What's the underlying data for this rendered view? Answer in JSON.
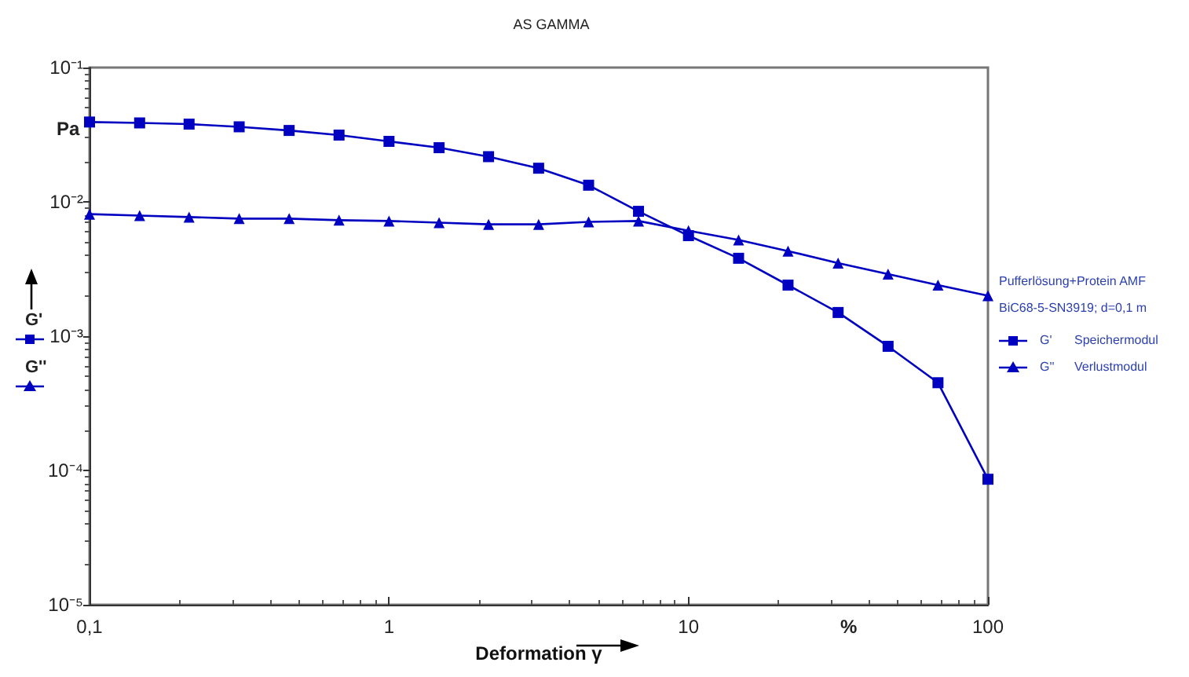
{
  "chart_data": {
    "type": "line",
    "title": "AS GAMMA",
    "xlabel": "Deformation γ",
    "ylabel": "Pa",
    "annotations": [
      "%",
      "Pufferlösung+Protein AMF",
      "BiC68-5-SN3919; d=0,1 m",
      "Speichermodul",
      "Verlustmodul"
    ],
    "x": [
      0.1,
      0.147,
      0.215,
      0.316,
      0.464,
      0.681,
      1,
      1.47,
      2.15,
      3.16,
      4.64,
      6.81,
      10,
      14.7,
      21.5,
      31.6,
      46.4,
      68.1,
      100
    ],
    "series": [
      {
        "name": "G'",
        "color": "#0000c0",
        "marker": "square",
        "values": [
          0.0393,
          0.0387,
          0.0379,
          0.0362,
          0.034,
          0.0314,
          0.0282,
          0.0253,
          0.0217,
          0.0178,
          0.0133,
          0.0085,
          0.0056,
          0.0038,
          0.0024,
          0.0015,
          0.00084,
          0.00045,
          8.6e-05
        ]
      },
      {
        "name": "G''",
        "color": "#0000c0",
        "marker": "triangle",
        "values": [
          0.0081,
          0.0079,
          0.0077,
          0.0075,
          0.0075,
          0.0073,
          0.0072,
          0.007,
          0.0068,
          0.0068,
          0.0071,
          0.0072,
          0.0061,
          0.0052,
          0.0043,
          0.0035,
          0.0029,
          0.0024,
          0.002
        ]
      }
    ],
    "log": "xy",
    "xlim": [
      0.1,
      100
    ],
    "ylim": [
      1e-05,
      0.1
    ],
    "xticks": [
      {
        "value": 0.1,
        "label": "0,1"
      },
      1,
      10,
      100
    ],
    "yticks": [
      {
        "value": 1e-05,
        "label": "10⁻⁵"
      },
      {
        "value": 0.0001,
        "label": "10⁻⁴"
      },
      {
        "value": 0.001,
        "label": "10⁻³"
      },
      {
        "value": 0.01,
        "label": "10⁻²"
      },
      {
        "value": 0.1,
        "label": "10⁻¹"
      }
    ],
    "grid": false,
    "legend": "right",
    "line_style": "solid"
  }
}
